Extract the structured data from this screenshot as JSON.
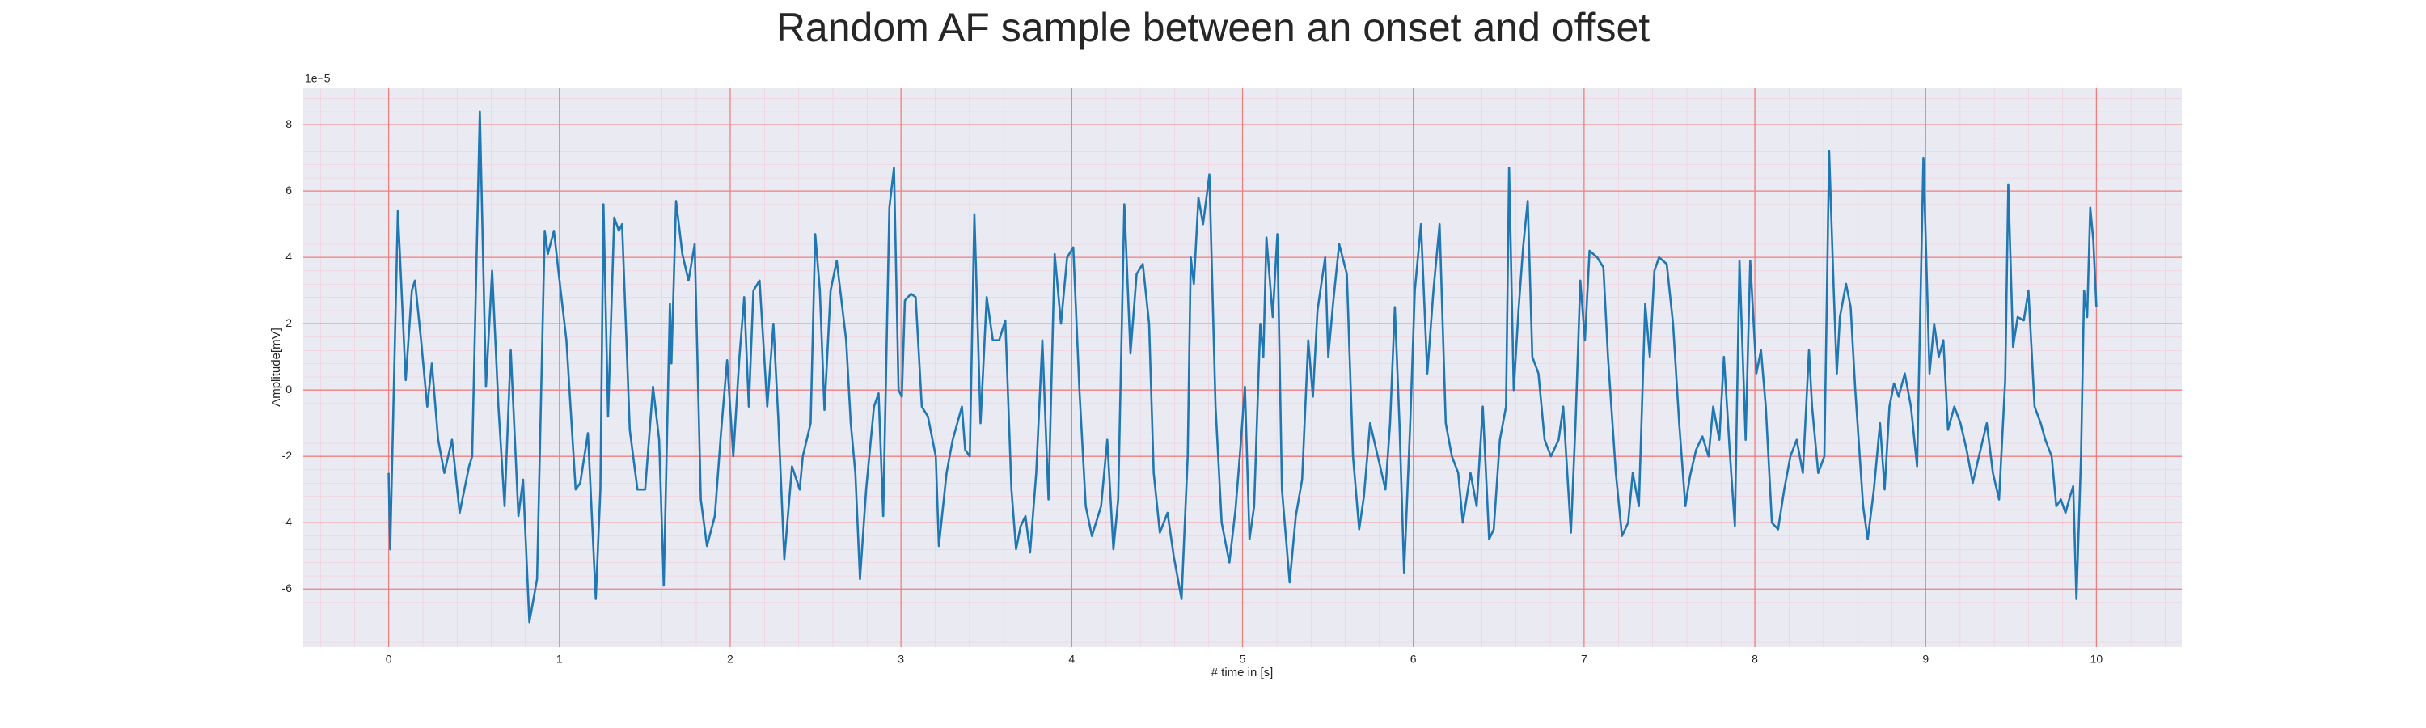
{
  "chart_data": {
    "type": "line",
    "title": "Random AF sample between an onset and offset",
    "x_label": "# time in [s]",
    "y_label": "Amplitude[mV]",
    "y_offset_label": "1e−5",
    "color": "#1f77b4",
    "grid": true,
    "xlim": [
      -0.5,
      10.5
    ],
    "ylim": [
      -7.75,
      9.1
    ],
    "xticks": [
      0,
      1,
      2,
      3,
      4,
      5,
      6,
      7,
      8,
      9,
      10
    ],
    "yticks": [
      -6,
      -4,
      -2,
      0,
      2,
      4,
      6,
      8
    ],
    "x": [
      0,
      0.009,
      0.054,
      0.1,
      0.136,
      0.154,
      0.19,
      0.226,
      0.253,
      0.29,
      0.326,
      0.371,
      0.416,
      0.471,
      0.489,
      0.534,
      0.57,
      0.606,
      0.643,
      0.679,
      0.715,
      0.76,
      0.787,
      0.824,
      0.869,
      0.914,
      0.932,
      0.968,
      1.005,
      1.041,
      1.095,
      1.122,
      1.167,
      1.213,
      1.24,
      1.258,
      1.285,
      1.321,
      1.348,
      1.367,
      1.412,
      1.457,
      1.502,
      1.548,
      1.584,
      1.611,
      1.647,
      1.656,
      1.683,
      1.72,
      1.756,
      1.792,
      1.828,
      1.864,
      1.91,
      1.946,
      1.982,
      2.018,
      2.054,
      2.082,
      2.109,
      2.136,
      2.172,
      2.217,
      2.253,
      2.281,
      2.317,
      2.362,
      2.407,
      2.425,
      2.471,
      2.498,
      2.525,
      2.552,
      2.588,
      2.624,
      2.679,
      2.706,
      2.733,
      2.76,
      2.796,
      2.842,
      2.869,
      2.896,
      2.932,
      2.959,
      2.986,
      3.005,
      3.023,
      3.059,
      3.086,
      3.122,
      3.158,
      3.204,
      3.222,
      3.267,
      3.303,
      3.357,
      3.376,
      3.403,
      3.43,
      3.466,
      3.502,
      3.538,
      3.575,
      3.611,
      3.647,
      3.674,
      3.701,
      3.729,
      3.756,
      3.792,
      3.828,
      3.864,
      3.9,
      3.937,
      3.973,
      4.009,
      4.045,
      4.082,
      4.118,
      4.172,
      4.208,
      4.244,
      4.272,
      4.308,
      4.344,
      4.38,
      4.416,
      4.453,
      4.48,
      4.516,
      4.561,
      4.597,
      4.643,
      4.679,
      4.697,
      4.715,
      4.742,
      4.769,
      4.806,
      4.842,
      4.878,
      4.923,
      4.959,
      4.987,
      5.014,
      5.041,
      5.068,
      5.104,
      5.122,
      5.14,
      5.177,
      5.204,
      5.231,
      5.276,
      5.312,
      5.349,
      5.385,
      5.412,
      5.439,
      5.484,
      5.502,
      5.53,
      5.566,
      5.611,
      5.647,
      5.683,
      5.711,
      5.747,
      5.792,
      5.837,
      5.864,
      5.892,
      5.919,
      5.946,
      5.982,
      6.009,
      6.045,
      6.082,
      6.118,
      6.154,
      6.19,
      6.226,
      6.263,
      6.29,
      6.335,
      6.371,
      6.407,
      6.444,
      6.471,
      6.507,
      6.543,
      6.561,
      6.588,
      6.616,
      6.643,
      6.67,
      6.697,
      6.733,
      6.769,
      6.806,
      6.851,
      6.878,
      6.923,
      6.95,
      6.978,
      7.005,
      7.032,
      7.077,
      7.113,
      7.14,
      7.186,
      7.222,
      7.258,
      7.285,
      7.321,
      7.358,
      7.385,
      7.412,
      7.439,
      7.484,
      7.521,
      7.557,
      7.593,
      7.62,
      7.656,
      7.693,
      7.729,
      7.756,
      7.792,
      7.819,
      7.855,
      7.883,
      7.91,
      7.946,
      7.973,
      8.009,
      8.036,
      8.064,
      8.1,
      8.136,
      8.172,
      8.208,
      8.245,
      8.281,
      8.317,
      8.335,
      8.371,
      8.407,
      8.435,
      8.462,
      8.48,
      8.498,
      8.534,
      8.561,
      8.588,
      8.634,
      8.661,
      8.697,
      8.733,
      8.76,
      8.788,
      8.815,
      8.842,
      8.878,
      8.914,
      8.95,
      8.987,
      9.023,
      9.05,
      9.077,
      9.104,
      9.131,
      9.168,
      9.204,
      9.24,
      9.276,
      9.312,
      9.358,
      9.394,
      9.43,
      9.466,
      9.484,
      9.512,
      9.539,
      9.575,
      9.602,
      9.638,
      9.674,
      9.701,
      9.738,
      9.765,
      9.792,
      9.819,
      9.846,
      9.864,
      9.883,
      9.91,
      9.928,
      9.946,
      9.964,
      9.982,
      10.0
    ],
    "values": [
      -2.5,
      -4.8,
      5.4,
      0.3,
      3.0,
      3.3,
      1.5,
      -0.5,
      0.8,
      -1.5,
      -2.5,
      -1.5,
      -3.7,
      -2.3,
      -2.0,
      8.4,
      0.1,
      3.6,
      -0.5,
      -3.5,
      1.2,
      -3.8,
      -2.7,
      -7.0,
      -5.7,
      4.8,
      4.1,
      4.8,
      3.1,
      1.5,
      -3,
      -2.8,
      -1.3,
      -6.3,
      -3,
      5.6,
      -0.8,
      5.2,
      4.8,
      5.0,
      -1.2,
      -3,
      -3,
      0.1,
      -1.5,
      -5.9,
      2.6,
      0.8,
      5.7,
      4.1,
      3.3,
      4.4,
      -3.3,
      -4.7,
      -3.8,
      -1.3,
      0.9,
      -2,
      1,
      2.8,
      -0.5,
      3.0,
      3.3,
      -0.5,
      2.0,
      -0.8,
      -5.1,
      -2.3,
      -3,
      -2,
      -1,
      4.7,
      3,
      -0.6,
      3,
      3.9,
      1.5,
      -1,
      -2.5,
      -5.7,
      -3,
      -0.5,
      -0.1,
      -3.8,
      5.5,
      6.7,
      0,
      -0.2,
      2.7,
      2.9,
      2.8,
      -0.5,
      -0.8,
      -2,
      -4.7,
      -2.5,
      -1.5,
      -0.5,
      -1.8,
      -2.0,
      5.3,
      -1,
      2.8,
      1.5,
      1.5,
      2.1,
      -3,
      -4.8,
      -4.1,
      -3.8,
      -4.9,
      -2.5,
      1.5,
      -3.3,
      4.1,
      2,
      4.0,
      4.3,
      0,
      -3.5,
      -4.4,
      -3.5,
      -1.5,
      -4.8,
      -3.3,
      5.6,
      1.1,
      3.5,
      3.8,
      2,
      -2.5,
      -4.3,
      -3.7,
      -5.0,
      -6.3,
      -2,
      4.0,
      3.2,
      5.8,
      5,
      6.5,
      -0.5,
      -4,
      -5.2,
      -3.6,
      -1.8,
      0.1,
      -4.5,
      -3.5,
      2.0,
      1,
      4.6,
      2.2,
      4.7,
      -3,
      -5.8,
      -3.8,
      -2.7,
      1.5,
      -0.2,
      2.4,
      4.0,
      1.0,
      2.6,
      4.4,
      3.5,
      -2,
      -4.2,
      -3.2,
      -1,
      -2,
      -3,
      -1,
      2.5,
      -1,
      -5.5,
      -1,
      3.0,
      5.0,
      0.5,
      3,
      5.0,
      -1,
      -2,
      -2.5,
      -4,
      -2.5,
      -3.5,
      -0.5,
      -4.5,
      -4.2,
      -1.5,
      -0.5,
      6.7,
      0,
      2.4,
      4.3,
      5.7,
      1,
      0.5,
      -1.5,
      -2.0,
      -1.5,
      -0.5,
      -4.3,
      -1,
      3.3,
      1.5,
      4.2,
      4.0,
      3.7,
      1,
      -2.5,
      -4.4,
      -4.0,
      -2.5,
      -3.5,
      2.6,
      1.0,
      3.6,
      4.0,
      3.8,
      2,
      -1,
      -3.5,
      -2.6,
      -1.8,
      -1.4,
      -2,
      -0.5,
      -1.5,
      1.0,
      -2,
      -4.1,
      3.9,
      -1.5,
      3.9,
      0.5,
      1.2,
      -0.5,
      -4,
      -4.2,
      -3,
      -2.0,
      -1.5,
      -2.5,
      1.2,
      -0.5,
      -2.5,
      -2,
      7.2,
      3,
      0.5,
      2.2,
      3.2,
      2.5,
      0,
      -3.5,
      -4.5,
      -3,
      -1,
      -3,
      -0.5,
      0.2,
      -0.2,
      0.5,
      -0.5,
      -2.3,
      7.0,
      0.5,
      2.0,
      1.0,
      1.5,
      -1.2,
      -0.5,
      -1,
      -1.8,
      -2.8,
      -2,
      -1,
      -2.5,
      -3.3,
      0.3,
      6.2,
      1.3,
      2.2,
      2.1,
      3.0,
      -0.5,
      -1,
      -1.5,
      -2,
      -3.5,
      -3.3,
      -3.7,
      -3.2,
      -2.9,
      -6.3,
      -2,
      3.0,
      2.2,
      5.5,
      4.5,
      2.5
    ]
  }
}
